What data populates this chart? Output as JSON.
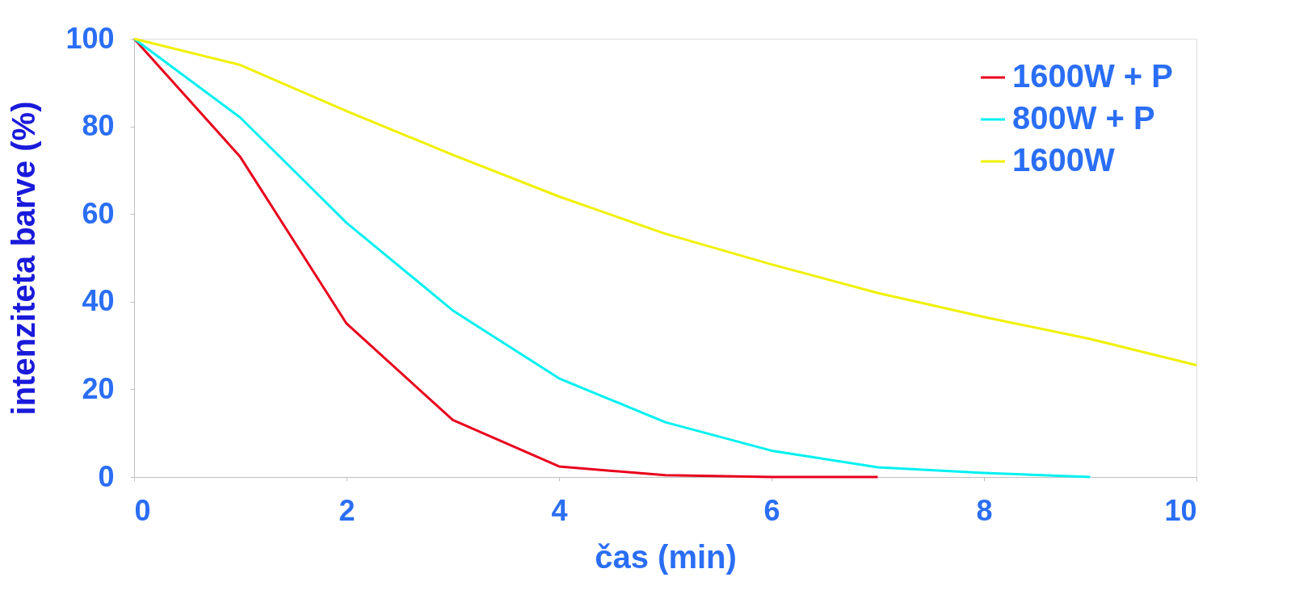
{
  "chart_data": {
    "type": "line",
    "xlabel": "čas (min)",
    "ylabel": "intenziteta barve (%)",
    "xlim": [
      0,
      10
    ],
    "xticks": [
      0,
      2,
      4,
      6,
      8,
      10
    ],
    "ylim": [
      0,
      100
    ],
    "yticks": [
      0,
      20,
      40,
      60,
      80,
      100
    ],
    "grid": false,
    "legend": "top right",
    "marker": "none",
    "line_style": "solid",
    "series": [
      {
        "name": "1600W + P",
        "color": "#e8001c",
        "x": [
          0,
          1,
          2,
          3,
          4,
          5,
          6,
          7
        ],
        "values": [
          100,
          73,
          35,
          13,
          2.4,
          0.4,
          0,
          0
        ]
      },
      {
        "name": "800W + P",
        "color": "#00f0f0",
        "x": [
          0,
          1,
          2,
          3,
          4,
          5,
          6,
          7,
          8,
          9
        ],
        "values": [
          100,
          82,
          58,
          38,
          22.5,
          12.5,
          6,
          2.2,
          0.9,
          0
        ]
      },
      {
        "name": "1600W",
        "color": "#f0f000",
        "x": [
          0,
          1,
          2,
          3,
          4,
          5,
          6,
          7,
          8,
          9,
          10
        ],
        "values": [
          100,
          94,
          83.5,
          73.5,
          64,
          55.5,
          48.5,
          42,
          36.5,
          31.5,
          25.5
        ]
      }
    ]
  }
}
